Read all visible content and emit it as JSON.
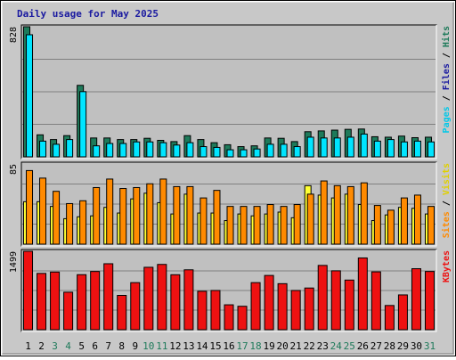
{
  "chart_data": {
    "type": "bar",
    "title": "Daily usage for May 2025",
    "x": [
      "1",
      "2",
      "3",
      "4",
      "5",
      "6",
      "7",
      "8",
      "9",
      "10",
      "11",
      "12",
      "13",
      "14",
      "15",
      "16",
      "17",
      "18",
      "19",
      "20",
      "21",
      "22",
      "23",
      "24",
      "25",
      "26",
      "27",
      "28",
      "29",
      "30",
      "31"
    ],
    "weekend_days": [
      3,
      4,
      10,
      11,
      17,
      18,
      24,
      25,
      31
    ],
    "colors": {
      "hits": "#1e7a5a",
      "files": "#00e5ff",
      "pages": "#00c8e8",
      "visits": "#ffff33",
      "sites": "#ff8a00",
      "kbytes": "#ee1111",
      "weekend_label": "#1e7a5a",
      "title": "#1a1aa0",
      "panel_bg": "#c0c0c0"
    },
    "panels": [
      {
        "id": "hits",
        "max_label": "828",
        "ylim": [
          0,
          828
        ],
        "side_labels": [
          {
            "text": "Pages",
            "color": "#00c8e8"
          },
          {
            "text": " / ",
            "color": "#000000"
          },
          {
            "text": "Files",
            "color": "#1a1aa0"
          },
          {
            "text": " / ",
            "color": "#000000"
          },
          {
            "text": "Hits",
            "color": "#1e7a5a"
          }
        ],
        "series": [
          {
            "name": "Hits",
            "color": "#1e7a5a",
            "values": [
              828,
              140,
              110,
              135,
              455,
              120,
              120,
              110,
              110,
              118,
              105,
              97,
              135,
              110,
              90,
              77,
              65,
              70,
              120,
              118,
              97,
              160,
              165,
              170,
              175,
              177,
              128,
              125,
              132,
              122,
              125
            ]
          },
          {
            "name": "Files",
            "color": "#00e5ff",
            "values": [
              777,
              100,
              80,
              110,
              415,
              70,
              85,
              85,
              95,
              95,
              90,
              75,
              90,
              65,
              60,
              45,
              45,
              50,
              80,
              80,
              65,
              125,
              120,
              120,
              125,
              145,
              100,
              110,
              95,
              100,
              95
            ]
          }
        ]
      },
      {
        "id": "visits",
        "max_label": "85",
        "ylim": [
          0,
          85
        ],
        "side_labels": [
          {
            "text": "Sites",
            "color": "#ff8a00"
          },
          {
            "text": " / ",
            "color": "#000000"
          },
          {
            "text": "Visits",
            "color": "#e0d000"
          }
        ],
        "series": [
          {
            "name": "Visits",
            "color": "#ffff33",
            "values": [
              45,
              45,
              40,
              27,
              29,
              30,
              39,
              33,
              48,
              54,
              44,
              32,
              53,
              33,
              33,
              25,
              32,
              30,
              32,
              34,
              28,
              62,
              52,
              49,
              53,
              42,
              25,
              31,
              39,
              38,
              32
            ]
          },
          {
            "name": "Sites",
            "color": "#ff8a00",
            "values": [
              78,
              70,
              56,
              43,
              46,
              60,
              69,
              59,
              60,
              64,
              69,
              61,
              61,
              49,
              57,
              40,
              40,
              40,
              42,
              40,
              42,
              53,
              67,
              62,
              61,
              65,
              41,
              36,
              49,
              52,
              40
            ]
          }
        ]
      },
      {
        "id": "kbytes",
        "max_label": "1499",
        "ylim": [
          0,
          1499
        ],
        "side_labels": [
          {
            "text": "KBytes",
            "color": "#ee1111"
          }
        ],
        "series": [
          {
            "name": "KBytes",
            "color": "#ee1111",
            "values": [
              1499,
              1076,
              1102,
              717,
              1052,
              1113,
              1261,
              656,
              900,
              1193,
              1248,
              1051,
              1145,
              735,
              750,
              476,
              448,
              900,
              1037,
              880,
              750,
              797,
              1229,
              1126,
              949,
              1372,
              1106,
              463,
              665,
              1166,
              1113
            ]
          }
        ]
      }
    ]
  }
}
